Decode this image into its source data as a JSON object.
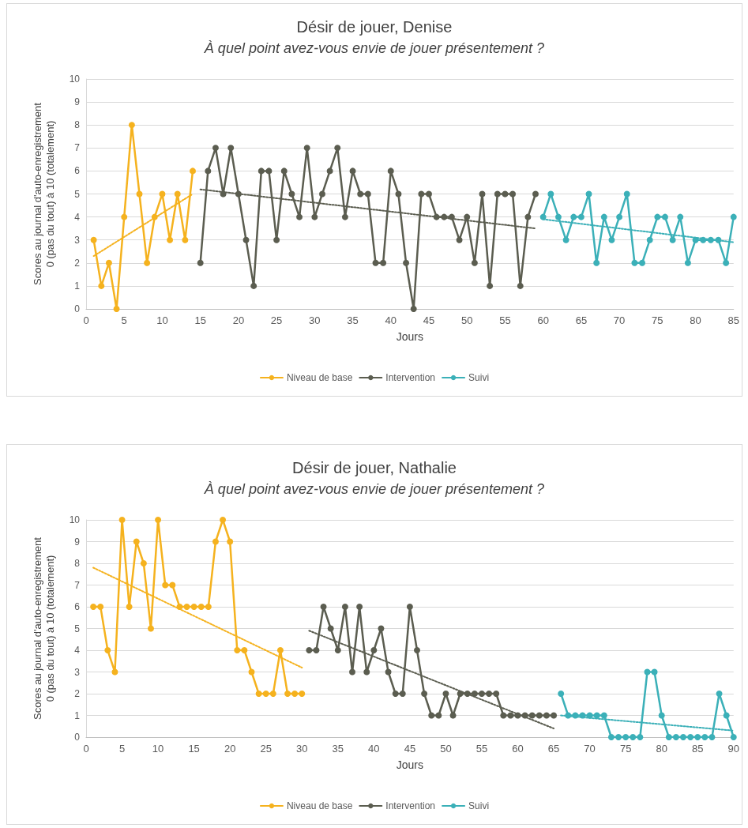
{
  "chart_data": [
    {
      "type": "line",
      "title": "Désir de jouer, Denise",
      "subtitle": "À quel point avez-vous envie de jouer présentement ?",
      "xlabel": "Jours",
      "ylabel": "Scores au journal d'auto-enregistrement\n0 (pas du tout) à 10 (totalement)",
      "xlim": [
        0,
        85
      ],
      "xticks": [
        0,
        5,
        10,
        15,
        20,
        25,
        30,
        35,
        40,
        45,
        50,
        55,
        60,
        65,
        70,
        75,
        80,
        85
      ],
      "ylim": [
        0,
        10
      ],
      "yticks": [
        0,
        1,
        2,
        3,
        4,
        5,
        6,
        7,
        8,
        9,
        10
      ],
      "grid": "y",
      "legend": "bottom",
      "marker": "circle",
      "line_style": "solid",
      "series": [
        {
          "name": "Niveau de base",
          "color": "#f5b21e",
          "x": [
            1,
            2,
            3,
            4,
            5,
            6,
            7,
            8,
            9,
            10,
            11,
            12,
            13,
            14
          ],
          "values": [
            3,
            1,
            2,
            0,
            4,
            8,
            5,
            2,
            4,
            5,
            3,
            5,
            3,
            6
          ]
        },
        {
          "name": "Intervention",
          "color": "#5b5d50",
          "x": [
            15,
            16,
            17,
            18,
            19,
            20,
            21,
            22,
            23,
            24,
            25,
            26,
            27,
            28,
            29,
            30,
            31,
            32,
            33,
            34,
            35,
            36,
            37,
            38,
            39,
            40,
            41,
            42,
            43,
            44,
            45,
            46,
            47,
            48,
            49,
            50,
            51,
            52,
            53,
            54,
            55,
            56,
            57,
            58,
            59
          ],
          "values": [
            2,
            6,
            7,
            5,
            7,
            5,
            3,
            1,
            6,
            6,
            3,
            6,
            5,
            4,
            7,
            4,
            5,
            6,
            7,
            4,
            6,
            5,
            5,
            2,
            2,
            6,
            5,
            2,
            0,
            5,
            5,
            4,
            4,
            4,
            3,
            4,
            2,
            5,
            1,
            5,
            5,
            5,
            1,
            4,
            5
          ]
        },
        {
          "name": "Suivi",
          "color": "#3bb0b8",
          "x": [
            60,
            61,
            62,
            63,
            64,
            65,
            66,
            67,
            68,
            69,
            70,
            71,
            72,
            73,
            74,
            75,
            76,
            77,
            78,
            79,
            80,
            81,
            82,
            83,
            84,
            85
          ],
          "values": [
            4,
            5,
            4,
            3,
            4,
            4,
            5,
            2,
            4,
            3,
            4,
            5,
            2,
            2,
            3,
            4,
            4,
            3,
            4,
            2,
            3,
            3,
            3,
            3,
            2,
            4
          ]
        },
        {
          "type": "line",
          "color": "#f5b21e",
          "x": [
            1,
            14
          ],
          "values": [
            2.3,
            5.0
          ],
          "line_style": "dotted",
          "marker": "none"
        },
        {
          "type": "line",
          "color": "#5b5d50",
          "x": [
            15,
            59
          ],
          "values": [
            5.2,
            3.5
          ],
          "line_style": "dotted",
          "marker": "none"
        },
        {
          "type": "line",
          "color": "#3bb0b8",
          "x": [
            60,
            85
          ],
          "values": [
            3.9,
            2.9
          ],
          "line_style": "dotted",
          "marker": "none"
        }
      ]
    },
    {
      "type": "line",
      "title": "Désir de jouer, Nathalie",
      "subtitle": "À quel point avez-vous envie de jouer présentement ?",
      "xlabel": "Jours",
      "ylabel": "Scores au journal d'auto-enregistrement\n0 (pas du tout) à 10 (totalement)",
      "xlim": [
        0,
        90
      ],
      "xticks": [
        0,
        5,
        10,
        15,
        20,
        25,
        30,
        35,
        40,
        45,
        50,
        55,
        60,
        65,
        70,
        75,
        80,
        85,
        90
      ],
      "ylim": [
        0,
        10
      ],
      "yticks": [
        0,
        1,
        2,
        3,
        4,
        5,
        6,
        7,
        8,
        9,
        10
      ],
      "grid": "y",
      "legend": "bottom",
      "marker": "circle",
      "line_style": "solid",
      "series": [
        {
          "name": "Niveau de base",
          "color": "#f5b21e",
          "x": [
            1,
            2,
            3,
            4,
            5,
            6,
            7,
            8,
            9,
            10,
            11,
            12,
            13,
            14,
            15,
            16,
            17,
            18,
            19,
            20,
            21,
            22,
            23,
            24,
            25,
            26,
            27,
            28,
            29,
            30
          ],
          "values": [
            6,
            6,
            4,
            3,
            10,
            6,
            9,
            8,
            5,
            10,
            7,
            7,
            6,
            6,
            6,
            6,
            6,
            9,
            10,
            9,
            4,
            4,
            3,
            2,
            2,
            2,
            4,
            2,
            2,
            2
          ]
        },
        {
          "name": "Intervention",
          "color": "#5b5d50",
          "x": [
            31,
            32,
            33,
            34,
            35,
            36,
            37,
            38,
            39,
            40,
            41,
            42,
            43,
            44,
            45,
            46,
            47,
            48,
            49,
            50,
            51,
            52,
            53,
            54,
            55,
            56,
            57,
            58,
            59,
            60,
            61,
            62,
            63,
            64,
            65
          ],
          "values": [
            4,
            4,
            6,
            5,
            4,
            6,
            3,
            6,
            3,
            4,
            5,
            3,
            2,
            2,
            6,
            4,
            2,
            1,
            1,
            2,
            1,
            2,
            2,
            2,
            2,
            2,
            2,
            1,
            1,
            1,
            1,
            1,
            1,
            1,
            1
          ]
        },
        {
          "name": "Suivi",
          "color": "#3bb0b8",
          "x": [
            66,
            67,
            68,
            69,
            70,
            71,
            72,
            73,
            74,
            75,
            76,
            77,
            78,
            79,
            80,
            81,
            82,
            83,
            84,
            85,
            86,
            87,
            88,
            89,
            90
          ],
          "values": [
            2,
            1,
            1,
            1,
            1,
            1,
            1,
            0,
            0,
            0,
            0,
            0,
            3,
            3,
            1,
            0,
            0,
            0,
            0,
            0,
            0,
            0,
            2,
            1,
            0
          ]
        },
        {
          "type": "line",
          "color": "#f5b21e",
          "x": [
            1,
            30
          ],
          "values": [
            7.8,
            3.2
          ],
          "line_style": "dotted",
          "marker": "none"
        },
        {
          "type": "line",
          "color": "#5b5d50",
          "x": [
            31,
            65
          ],
          "values": [
            4.9,
            0.4
          ],
          "line_style": "dotted",
          "marker": "none"
        },
        {
          "type": "line",
          "color": "#3bb0b8",
          "x": [
            66,
            90
          ],
          "values": [
            1.0,
            0.3
          ],
          "line_style": "dotted",
          "marker": "none"
        }
      ]
    }
  ]
}
